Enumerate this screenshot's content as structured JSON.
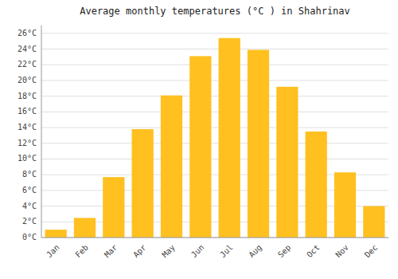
{
  "chart_data": {
    "type": "bar",
    "title": "Average monthly temperatures (°C ) in Shahrinav",
    "categories": [
      "Jan",
      "Feb",
      "Mar",
      "Apr",
      "May",
      "Jun",
      "Jul",
      "Aug",
      "Sep",
      "Oct",
      "Nov",
      "Dec"
    ],
    "values": [
      1,
      2.5,
      7.7,
      13.8,
      18.1,
      23.1,
      25.4,
      23.9,
      19.2,
      13.5,
      8.3,
      4.0
    ],
    "color": "#FFC020",
    "ylim": [
      0,
      27
    ],
    "yticks": [
      {
        "value": 0,
        "label": "0°C"
      },
      {
        "value": 2,
        "label": "2°C"
      },
      {
        "value": 4,
        "label": "4°C"
      },
      {
        "value": 6,
        "label": "6°C"
      },
      {
        "value": 8,
        "label": "8°C"
      },
      {
        "value": 10,
        "label": "10°C"
      },
      {
        "value": 12,
        "label": "12°C"
      },
      {
        "value": 14,
        "label": "14°C"
      },
      {
        "value": 16,
        "label": "16°C"
      },
      {
        "value": 18,
        "label": "18°C"
      },
      {
        "value": 20,
        "label": "20°C"
      },
      {
        "value": 22,
        "label": "22°C"
      },
      {
        "value": 24,
        "label": "24°C"
      },
      {
        "value": 26,
        "label": "26°C"
      }
    ],
    "grid": true
  }
}
